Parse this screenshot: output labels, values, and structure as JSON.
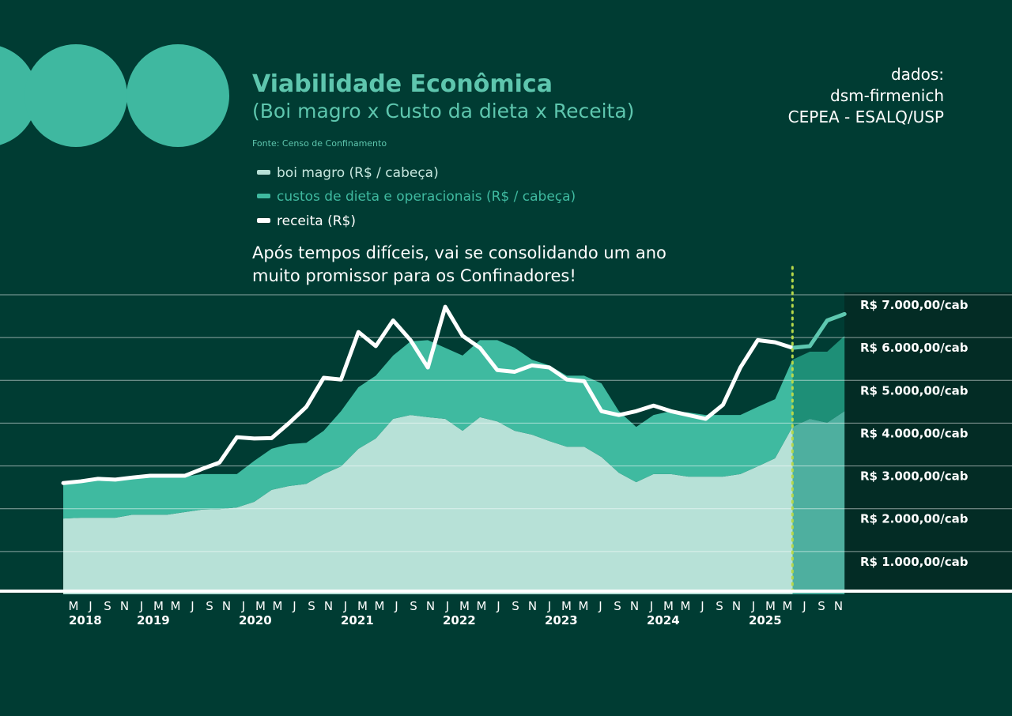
{
  "chart_data": {
    "type": "stacked_area_line",
    "title": "Viabilidade Econômica",
    "subtitle": "(Boi magro x Custo da dieta x Receita)",
    "source_note": "Fonte: Censo de Confinamento",
    "credits": [
      "dados:",
      "dsm-firmenich",
      "CEPEA - ESALQ/USP"
    ],
    "annotation": [
      "Após tempos difíceis, vai se consolidando um ano",
      "muito promissor para os Confinadores!"
    ],
    "categories": [
      "M",
      "J",
      "S",
      "N",
      "J",
      "M",
      "M",
      "J",
      "S",
      "N",
      "J",
      "M",
      "M",
      "J",
      "S",
      "N",
      "J",
      "M",
      "M",
      "J",
      "S",
      "N",
      "J",
      "M",
      "M",
      "J",
      "S",
      "N",
      "J",
      "M",
      "M",
      "J",
      "S",
      "N",
      "J",
      "M",
      "M",
      "J",
      "S",
      "N",
      "J",
      "M",
      "M",
      "J",
      "S",
      "N"
    ],
    "years": [
      "2018",
      null,
      null,
      null,
      "2019",
      null,
      null,
      null,
      null,
      null,
      "2020",
      null,
      null,
      null,
      null,
      null,
      "2021",
      null,
      null,
      null,
      null,
      null,
      "2022",
      null,
      null,
      null,
      null,
      null,
      "2023",
      null,
      null,
      null,
      null,
      null,
      "2024",
      null,
      null,
      null,
      null,
      null,
      "2025",
      null,
      null,
      null,
      null,
      null
    ],
    "forecast_from": 42,
    "series": [
      {
        "name": "boi magro (R$ / cabeça)",
        "kind": "area",
        "color": "#b7e1d7",
        "forecast_color": "#4eaf9f",
        "values": [
          1770,
          1790,
          1790,
          1790,
          1860,
          1860,
          1860,
          1920,
          1980,
          1990,
          2030,
          2160,
          2440,
          2530,
          2580,
          2810,
          2990,
          3400,
          3640,
          4100,
          4190,
          4140,
          4100,
          3820,
          4140,
          4040,
          3820,
          3730,
          3580,
          3450,
          3450,
          3210,
          2840,
          2620,
          2810,
          2810,
          2750,
          2750,
          2750,
          2810,
          2990,
          3180,
          3910,
          4100,
          4010,
          4280
        ]
      },
      {
        "name": "custos de dieta e operacionais (R$ / cabeça)",
        "kind": "area",
        "color": "#3fbaa0",
        "forecast_color": "#1e8f77",
        "values": [
          810,
          870,
          920,
          870,
          890,
          890,
          890,
          830,
          830,
          820,
          780,
          960,
          960,
          980,
          960,
          1010,
          1290,
          1440,
          1470,
          1480,
          1720,
          1800,
          1660,
          1760,
          1800,
          1900,
          1940,
          1750,
          1770,
          1660,
          1660,
          1720,
          1440,
          1290,
          1380,
          1470,
          1500,
          1440,
          1440,
          1380,
          1390,
          1380,
          1570,
          1570,
          1660,
          1760
        ]
      },
      {
        "name": "receita (R$)",
        "kind": "line",
        "color": "#ffffff",
        "forecast_color": "#5ec8b0",
        "values": [
          2600,
          2640,
          2700,
          2680,
          2730,
          2770,
          2770,
          2770,
          2930,
          3080,
          3670,
          3640,
          3650,
          4000,
          4380,
          5060,
          5020,
          6130,
          5800,
          6400,
          5940,
          5300,
          6720,
          6040,
          5760,
          5240,
          5200,
          5350,
          5300,
          5020,
          4980,
          4280,
          4190,
          4280,
          4410,
          4280,
          4190,
          4100,
          4430,
          5300,
          5940,
          5890,
          5760,
          5800,
          6400,
          6550
        ]
      }
    ],
    "ylim": [
      0,
      7000
    ],
    "yticks": [
      {
        "value": 1000,
        "label": "R$ 1.000,00/cab"
      },
      {
        "value": 2000,
        "label": "R$ 2.000,00/cab"
      },
      {
        "value": 3000,
        "label": "R$ 3.000,00/cab"
      },
      {
        "value": 4000,
        "label": "R$ 4.000,00/cab"
      },
      {
        "value": 5000,
        "label": "R$ 5.000,00/cab"
      },
      {
        "value": 6000,
        "label": "R$ 6.000,00/cab"
      },
      {
        "value": 7000,
        "label": "R$ 7.000,00/cab"
      }
    ],
    "grid": true
  }
}
